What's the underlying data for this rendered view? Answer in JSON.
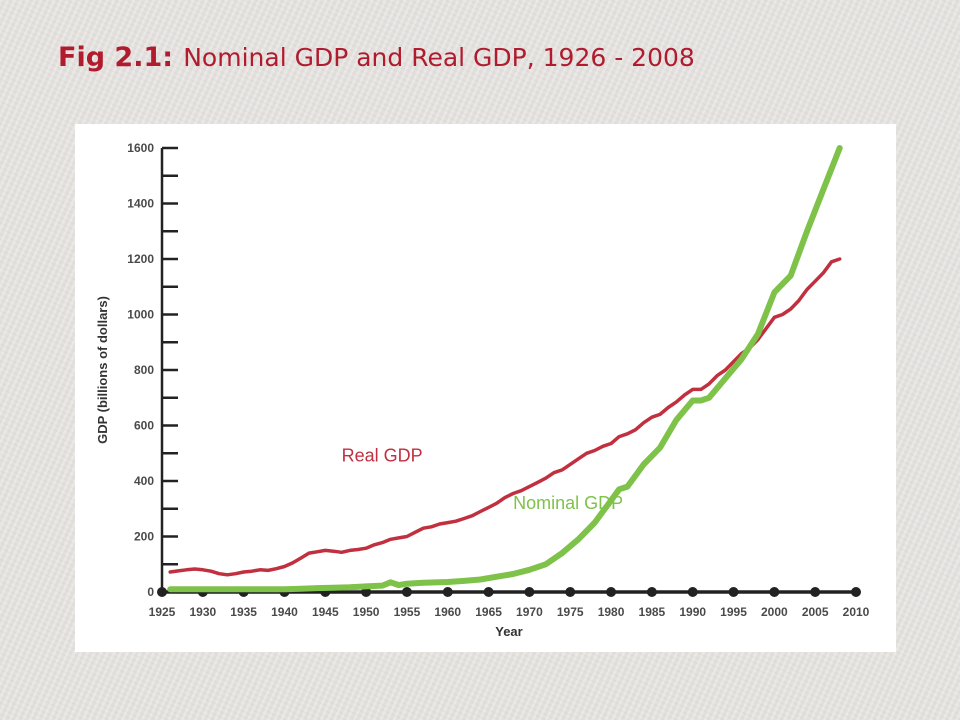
{
  "slide": {
    "title_prefix": "Fig 2.1:",
    "title_text": "Nominal GDP and Real GDP, 1926 - 2008"
  },
  "colors": {
    "title": "#b01c2e",
    "real": "#c0303f",
    "nominal": "#7ec24a",
    "axis": "#222222"
  },
  "chart_data": {
    "type": "line",
    "title": "",
    "xlabel": "Year",
    "ylabel": "GDP (billions of dollars)",
    "xlim": [
      1925,
      2010
    ],
    "ylim": [
      0,
      1600
    ],
    "x_ticks": [
      1925,
      1930,
      1935,
      1940,
      1945,
      1950,
      1955,
      1960,
      1965,
      1970,
      1975,
      1980,
      1985,
      1990,
      1995,
      2000,
      2005,
      2010
    ],
    "y_ticks": [
      0,
      200,
      400,
      600,
      800,
      1000,
      1200,
      1400,
      1600
    ],
    "grid": false,
    "series": [
      {
        "name": "Real GDP",
        "color": "#c0303f",
        "x": [
          1926,
          1927,
          1928,
          1929,
          1930,
          1931,
          1932,
          1933,
          1934,
          1935,
          1936,
          1937,
          1938,
          1939,
          1940,
          1941,
          1942,
          1943,
          1944,
          1945,
          1946,
          1947,
          1948,
          1949,
          1950,
          1951,
          1952,
          1953,
          1954,
          1955,
          1956,
          1957,
          1958,
          1959,
          1960,
          1961,
          1962,
          1963,
          1964,
          1965,
          1966,
          1967,
          1968,
          1969,
          1970,
          1971,
          1972,
          1973,
          1974,
          1975,
          1976,
          1977,
          1978,
          1979,
          1980,
          1981,
          1982,
          1983,
          1984,
          1985,
          1986,
          1987,
          1988,
          1989,
          1990,
          1991,
          1992,
          1993,
          1994,
          1995,
          1996,
          1997,
          1998,
          1999,
          2000,
          2001,
          2002,
          2003,
          2004,
          2005,
          2006,
          2007,
          2008
        ],
        "values": [
          72,
          76,
          80,
          83,
          80,
          75,
          66,
          62,
          66,
          72,
          75,
          80,
          78,
          84,
          92,
          105,
          122,
          140,
          145,
          150,
          147,
          143,
          150,
          153,
          158,
          170,
          178,
          190,
          195,
          200,
          215,
          230,
          235,
          245,
          250,
          255,
          265,
          275,
          290,
          305,
          320,
          340,
          355,
          365,
          380,
          395,
          410,
          430,
          440,
          460,
          480,
          500,
          510,
          525,
          535,
          560,
          570,
          585,
          610,
          630,
          640,
          665,
          685,
          710,
          730,
          730,
          750,
          780,
          800,
          830,
          860,
          880,
          910,
          950,
          990,
          1000,
          1020,
          1050,
          1090,
          1120,
          1150,
          1190,
          1200
        ]
      },
      {
        "name": "Nominal GDP",
        "color": "#7ec24a",
        "x": [
          1926,
          1928,
          1930,
          1932,
          1934,
          1936,
          1938,
          1940,
          1942,
          1944,
          1946,
          1948,
          1950,
          1952,
          1953,
          1954,
          1955,
          1957,
          1960,
          1962,
          1964,
          1966,
          1968,
          1970,
          1972,
          1974,
          1976,
          1978,
          1980,
          1981,
          1982,
          1984,
          1986,
          1988,
          1990,
          1991,
          1992,
          1994,
          1996,
          1998,
          2000,
          2002,
          2004,
          2006,
          2008
        ],
        "values": [
          10,
          10,
          10,
          10,
          10,
          10,
          10,
          10,
          12,
          14,
          15,
          17,
          20,
          23,
          35,
          25,
          30,
          33,
          36,
          40,
          45,
          55,
          65,
          80,
          100,
          140,
          190,
          250,
          330,
          370,
          380,
          460,
          520,
          620,
          690,
          690,
          700,
          770,
          840,
          930,
          1080,
          1140,
          1300,
          1450,
          1600
        ]
      }
    ],
    "annotations": [
      {
        "text": "Real GDP",
        "x": 1947,
        "y": 470,
        "color": "#c0303f"
      },
      {
        "text": "Nominal GDP",
        "x": 1968,
        "y": 300,
        "color": "#7ec24a"
      }
    ]
  }
}
